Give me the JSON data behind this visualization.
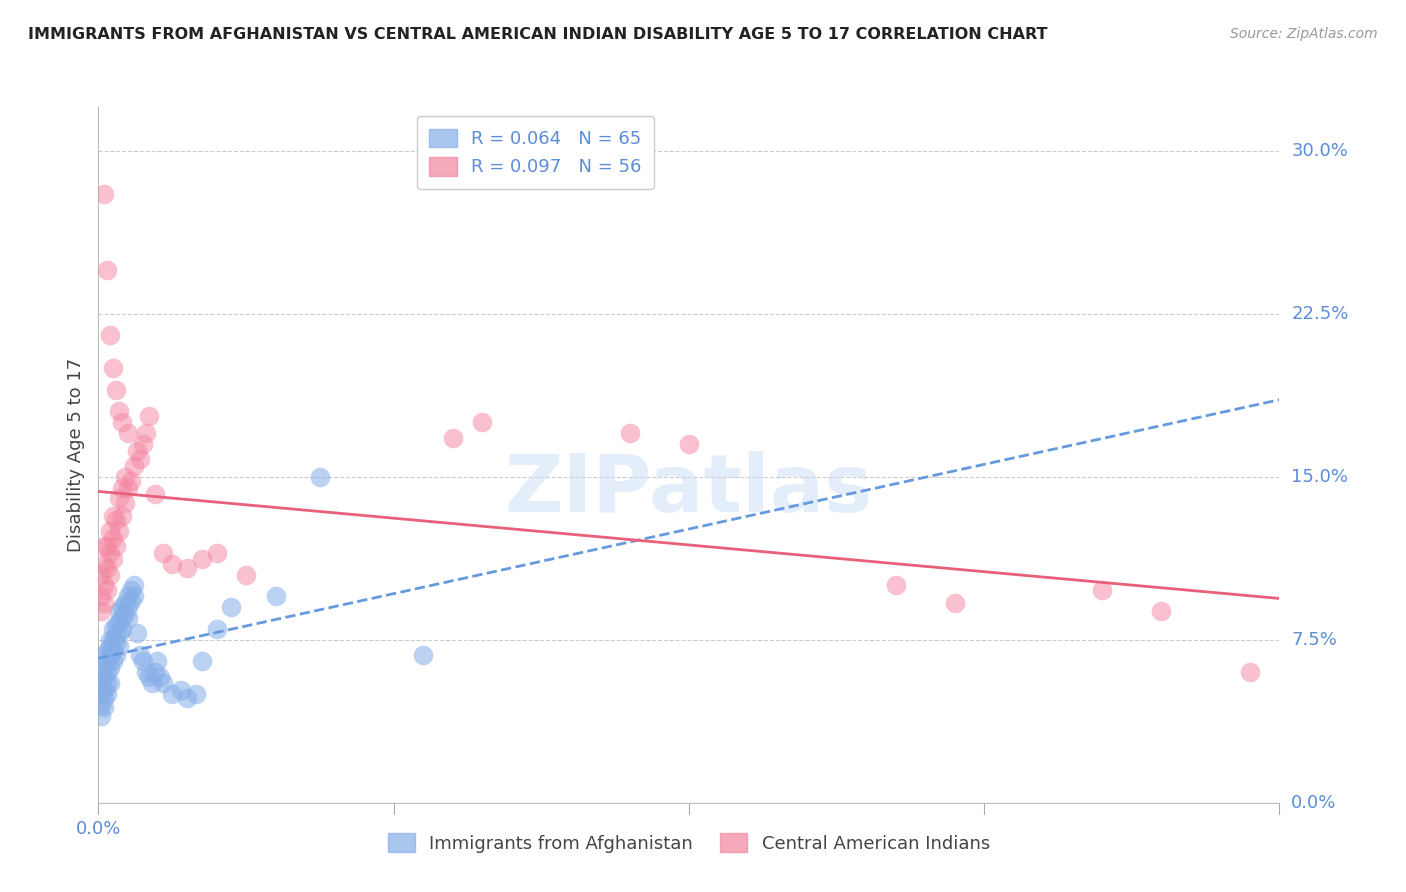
{
  "title": "IMMIGRANTS FROM AFGHANISTAN VS CENTRAL AMERICAN INDIAN DISABILITY AGE 5 TO 17 CORRELATION CHART",
  "source": "Source: ZipAtlas.com",
  "ylabel": "Disability Age 5 to 17",
  "watermark": "ZIPatlas",
  "blue_color": "#85aee8",
  "pink_color": "#f485a0",
  "trend_blue_color": "#6699dd",
  "trend_pink_color": "#e8607a",
  "background_color": "#ffffff",
  "grid_color": "#cccccc",
  "axis_label_color": "#5b8dd9",
  "title_color": "#222222",
  "xlim": [
    0.0,
    0.4
  ],
  "ylim": [
    0.0,
    0.32
  ],
  "ytick_values": [
    0.0,
    0.075,
    0.15,
    0.225,
    0.3
  ],
  "ytick_labels": [
    "0.0%",
    "7.5%",
    "15.0%",
    "22.5%",
    "30.0%"
  ],
  "legend_r1": "R = 0.064   N = 65",
  "legend_r2": "R = 0.097   N = 56",
  "legend_label1": "Immigrants from Afghanistan",
  "legend_label2": "Central American Indians",
  "blue_x": [
    0.001,
    0.001,
    0.001,
    0.001,
    0.001,
    0.002,
    0.002,
    0.002,
    0.002,
    0.002,
    0.002,
    0.003,
    0.003,
    0.003,
    0.003,
    0.003,
    0.004,
    0.004,
    0.004,
    0.004,
    0.004,
    0.005,
    0.005,
    0.005,
    0.005,
    0.006,
    0.006,
    0.006,
    0.006,
    0.007,
    0.007,
    0.007,
    0.007,
    0.008,
    0.008,
    0.008,
    0.009,
    0.009,
    0.01,
    0.01,
    0.01,
    0.011,
    0.011,
    0.012,
    0.012,
    0.013,
    0.014,
    0.015,
    0.016,
    0.017,
    0.018,
    0.019,
    0.02,
    0.021,
    0.022,
    0.025,
    0.028,
    0.03,
    0.033,
    0.035,
    0.04,
    0.045,
    0.06,
    0.075,
    0.11
  ],
  "blue_y": [
    0.055,
    0.06,
    0.05,
    0.045,
    0.04,
    0.062,
    0.058,
    0.068,
    0.052,
    0.048,
    0.044,
    0.07,
    0.065,
    0.06,
    0.055,
    0.05,
    0.075,
    0.072,
    0.068,
    0.062,
    0.055,
    0.08,
    0.075,
    0.07,
    0.065,
    0.082,
    0.078,
    0.074,
    0.068,
    0.088,
    0.083,
    0.078,
    0.072,
    0.09,
    0.085,
    0.08,
    0.092,
    0.087,
    0.095,
    0.09,
    0.085,
    0.098,
    0.093,
    0.1,
    0.095,
    0.078,
    0.068,
    0.065,
    0.06,
    0.058,
    0.055,
    0.06,
    0.065,
    0.058,
    0.055,
    0.05,
    0.052,
    0.048,
    0.05,
    0.065,
    0.08,
    0.09,
    0.095,
    0.15,
    0.068
  ],
  "pink_x": [
    0.001,
    0.001,
    0.001,
    0.002,
    0.002,
    0.002,
    0.002,
    0.003,
    0.003,
    0.003,
    0.004,
    0.004,
    0.004,
    0.005,
    0.005,
    0.005,
    0.006,
    0.006,
    0.007,
    0.007,
    0.008,
    0.008,
    0.009,
    0.009,
    0.01,
    0.011,
    0.012,
    0.013,
    0.014,
    0.015,
    0.016,
    0.017,
    0.019,
    0.022,
    0.025,
    0.03,
    0.035,
    0.04,
    0.05,
    0.12,
    0.13,
    0.18,
    0.2,
    0.27,
    0.29,
    0.34,
    0.36,
    0.39,
    0.002,
    0.003,
    0.004,
    0.005,
    0.006,
    0.007,
    0.008,
    0.01
  ],
  "pink_y": [
    0.088,
    0.095,
    0.105,
    0.092,
    0.1,
    0.11,
    0.118,
    0.098,
    0.108,
    0.118,
    0.105,
    0.115,
    0.125,
    0.112,
    0.122,
    0.132,
    0.118,
    0.13,
    0.125,
    0.14,
    0.132,
    0.145,
    0.138,
    0.15,
    0.145,
    0.148,
    0.155,
    0.162,
    0.158,
    0.165,
    0.17,
    0.178,
    0.142,
    0.115,
    0.11,
    0.108,
    0.112,
    0.115,
    0.105,
    0.168,
    0.175,
    0.17,
    0.165,
    0.1,
    0.092,
    0.098,
    0.088,
    0.06,
    0.28,
    0.245,
    0.215,
    0.2,
    0.19,
    0.18,
    0.175,
    0.17
  ]
}
